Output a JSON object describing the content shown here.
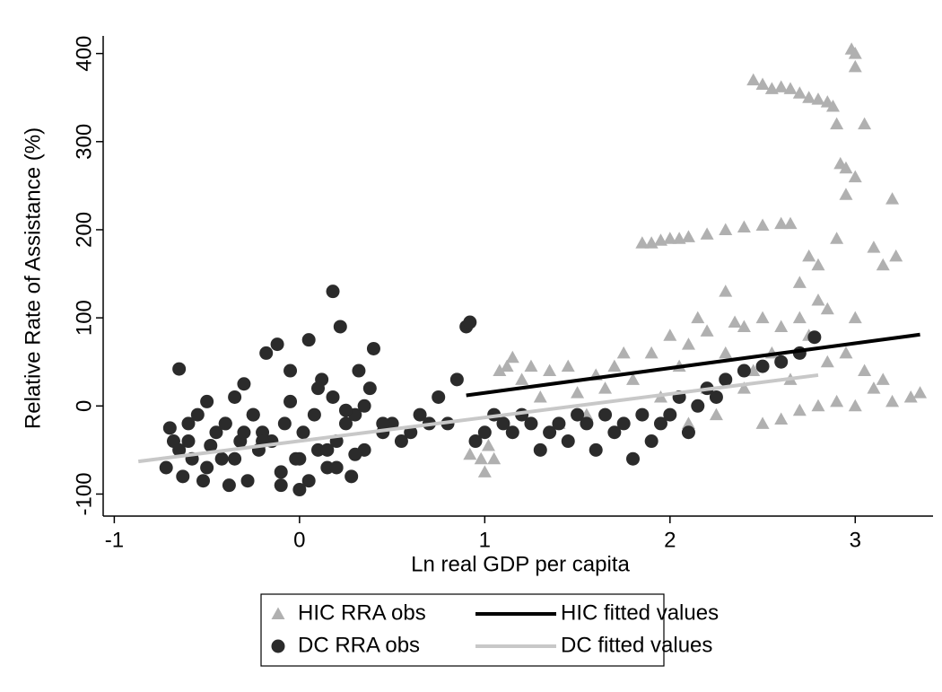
{
  "chart_data": {
    "type": "scatter",
    "x_label": "Ln real GDP per capita",
    "y_label": "Relative Rate of Assistance (%)",
    "xlim": [
      -1.06,
      3.42
    ],
    "ylim": [
      -125,
      420
    ],
    "xticks": [
      -1,
      0,
      1,
      2,
      3
    ],
    "yticks": [
      -100,
      0,
      100,
      200,
      300,
      400
    ],
    "legend": "bottom",
    "series": [
      {
        "name": "HIC RRA obs",
        "marker": "triangle",
        "color": "#b0b0b0",
        "x": [
          0.92,
          0.98,
          1.0,
          1.02,
          1.05,
          1.08,
          1.12,
          1.15,
          1.2,
          1.25,
          1.3,
          1.35,
          1.4,
          1.45,
          1.5,
          1.55,
          1.6,
          1.65,
          1.7,
          1.75,
          1.8,
          1.85,
          1.9,
          1.95,
          2.0,
          2.05,
          2.1,
          2.2,
          2.3,
          2.4,
          2.5,
          2.6,
          2.65,
          2.0,
          2.05,
          2.1,
          2.15,
          2.2,
          2.25,
          2.3,
          2.35,
          2.4,
          2.45,
          2.5,
          2.55,
          2.6,
          2.65,
          2.7,
          2.75,
          2.8,
          2.85,
          2.88,
          2.9,
          2.92,
          2.95,
          2.98,
          3.0,
          3.0,
          3.05,
          2.95,
          3.0,
          2.9,
          2.8,
          2.75,
          2.7,
          2.85,
          3.1,
          3.15,
          3.2,
          3.22,
          2.5,
          2.6,
          2.7,
          2.8,
          2.9,
          3.0,
          3.1,
          3.2,
          3.3,
          3.35,
          2.45,
          2.55,
          2.65,
          2.75,
          2.85,
          2.95,
          3.05,
          3.15,
          2.5,
          2.6,
          2.7,
          2.8,
          3.0,
          2.3,
          2.4,
          1.9,
          1.95,
          2.1,
          2.2
        ],
        "values": [
          -55,
          -60,
          -75,
          -45,
          -60,
          40,
          45,
          55,
          30,
          45,
          10,
          40,
          -20,
          45,
          15,
          -10,
          35,
          20,
          45,
          60,
          30,
          185,
          185,
          188,
          190,
          190,
          192,
          195,
          200,
          203,
          205,
          207,
          207,
          80,
          45,
          70,
          100,
          85,
          -10,
          130,
          95,
          90,
          370,
          365,
          360,
          362,
          360,
          355,
          350,
          348,
          345,
          340,
          320,
          275,
          270,
          405,
          400,
          385,
          320,
          240,
          260,
          190,
          160,
          170,
          140,
          110,
          180,
          160,
          235,
          170,
          -20,
          -15,
          -5,
          0,
          5,
          0,
          20,
          5,
          10,
          15,
          40,
          60,
          30,
          80,
          50,
          60,
          40,
          30,
          100,
          90,
          100,
          120,
          100,
          60,
          20,
          60,
          10,
          -20,
          20
        ]
      },
      {
        "name": "HIC fitted values",
        "marker": "line",
        "color": "#000000",
        "x": [
          0.9,
          3.35
        ],
        "values": [
          12,
          81
        ]
      },
      {
        "name": "DC RRA obs",
        "marker": "circle",
        "color": "#2b2b2b",
        "x": [
          -0.72,
          -0.7,
          -0.68,
          -0.65,
          -0.63,
          -0.6,
          -0.58,
          -0.55,
          -0.52,
          -0.5,
          -0.48,
          -0.45,
          -0.42,
          -0.4,
          -0.38,
          -0.35,
          -0.32,
          -0.3,
          -0.28,
          -0.25,
          -0.22,
          -0.2,
          -0.18,
          -0.15,
          -0.12,
          -0.1,
          -0.08,
          -0.05,
          -0.02,
          0.0,
          0.02,
          0.05,
          0.08,
          0.1,
          0.12,
          0.15,
          0.18,
          0.2,
          0.22,
          0.25,
          0.28,
          0.3,
          0.32,
          0.35,
          0.38,
          0.4,
          0.45,
          0.5,
          0.55,
          0.6,
          0.65,
          0.7,
          0.75,
          0.8,
          0.85,
          0.9,
          0.92,
          0.95,
          1.0,
          1.05,
          1.1,
          1.15,
          1.2,
          1.25,
          1.3,
          1.35,
          1.4,
          1.45,
          1.5,
          1.55,
          1.6,
          1.65,
          1.7,
          1.75,
          1.8,
          1.85,
          1.9,
          1.95,
          2.0,
          2.05,
          2.1,
          2.15,
          2.2,
          2.25,
          2.3,
          2.4,
          2.5,
          2.6,
          2.7,
          2.78,
          -0.65,
          -0.5,
          -0.35,
          -0.2,
          -0.1,
          0.0,
          0.05,
          0.15,
          0.2,
          0.3,
          -0.4,
          -0.25,
          0.1,
          0.35,
          0.18,
          -0.05,
          0.25,
          0.45,
          -0.6,
          -0.3
        ],
        "values": [
          -70,
          -25,
          -40,
          42,
          -80,
          -20,
          -60,
          -10,
          -85,
          5,
          -45,
          -30,
          -60,
          -20,
          -90,
          10,
          -40,
          25,
          -85,
          -10,
          -50,
          -30,
          60,
          -40,
          70,
          -90,
          -20,
          40,
          -60,
          -95,
          -30,
          75,
          -10,
          -50,
          30,
          -70,
          130,
          -40,
          90,
          -20,
          -80,
          -10,
          40,
          -50,
          20,
          65,
          -30,
          -20,
          -40,
          -30,
          -10,
          -20,
          10,
          -20,
          30,
          90,
          95,
          -40,
          -30,
          -10,
          -20,
          -30,
          -10,
          -20,
          -50,
          -30,
          -20,
          -40,
          -10,
          -20,
          -50,
          -10,
          -30,
          -20,
          -60,
          -10,
          -40,
          -20,
          -10,
          10,
          -30,
          0,
          20,
          10,
          30,
          40,
          45,
          50,
          60,
          78,
          -50,
          -70,
          -60,
          -40,
          -75,
          -60,
          -85,
          -50,
          -70,
          -55,
          -20,
          -10,
          20,
          0,
          10,
          5,
          -5,
          -20,
          -40,
          -30
        ]
      },
      {
        "name": "DC fitted values",
        "marker": "line",
        "color": "#c8c8c8",
        "x": [
          -0.87,
          2.8
        ],
        "values": [
          -63,
          35
        ]
      }
    ]
  }
}
